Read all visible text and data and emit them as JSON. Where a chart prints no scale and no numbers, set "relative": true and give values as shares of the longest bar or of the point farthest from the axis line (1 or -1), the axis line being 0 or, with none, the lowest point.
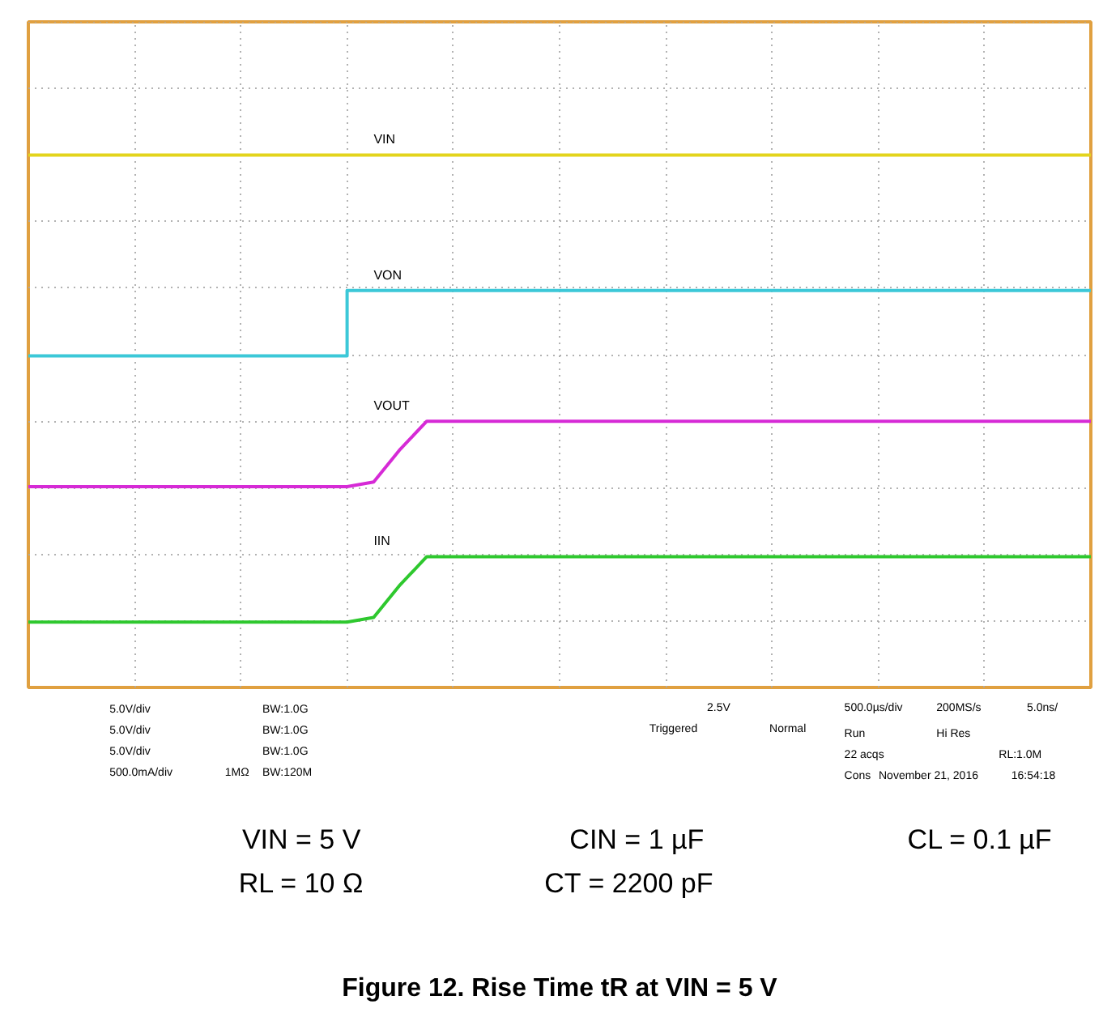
{
  "chart_data": {
    "type": "line",
    "relative": true,
    "grid": true,
    "title": "Figure 12. Rise Time tR at VIN = 5 V",
    "categories": [
      null,
      null,
      null,
      null,
      null,
      null,
      null,
      null,
      null,
      null,
      null,
      null,
      null,
      null,
      null,
      null,
      null,
      null,
      null,
      null,
      null,
      null,
      null,
      null,
      null,
      null,
      null,
      null,
      null,
      null,
      null,
      null,
      null,
      null,
      null,
      null,
      null,
      null,
      null,
      null,
      null
    ],
    "series": [
      {
        "name": "VIN",
        "color": "#e3d41c",
        "values": [
          1,
          1,
          1,
          1,
          1,
          1,
          1,
          1,
          1,
          1,
          1,
          1,
          1,
          1,
          1,
          1,
          1,
          1,
          1,
          1,
          1,
          1,
          1,
          1,
          1,
          1,
          1,
          1,
          1,
          1,
          1,
          1,
          1,
          1,
          1,
          1,
          1,
          1,
          1,
          1,
          1
        ]
      },
      {
        "name": "VON",
        "type": "step",
        "color": "#3cc8d8",
        "values": [
          0.57,
          0.57,
          0.57,
          0.57,
          0.57,
          0.57,
          0.57,
          0.57,
          0.57,
          0.57,
          0.57,
          0.57,
          0.71,
          0.71,
          0.71,
          0.71,
          0.71,
          0.71,
          0.71,
          0.71,
          0.71,
          0.71,
          0.71,
          0.71,
          0.71,
          0.71,
          0.71,
          0.71,
          0.71,
          0.71,
          0.71,
          0.71,
          0.71,
          0.71,
          0.71,
          0.71,
          0.71,
          0.71,
          0.71,
          0.71,
          0.71
        ]
      },
      {
        "name": "VOUT",
        "color": "#d62ad6",
        "values": [
          0.29,
          0.29,
          0.29,
          0.29,
          0.29,
          0.29,
          0.29,
          0.29,
          0.29,
          0.29,
          0.29,
          0.29,
          0.29,
          0.3,
          0.37,
          0.43,
          0.43,
          0.43,
          0.43,
          0.43,
          0.43,
          0.43,
          0.43,
          0.43,
          0.43,
          0.43,
          0.43,
          0.43,
          0.43,
          0.43,
          0.43,
          0.43,
          0.43,
          0.43,
          0.43,
          0.43,
          0.43,
          0.43,
          0.43,
          0.43,
          0.43
        ]
      },
      {
        "name": "IIN",
        "color": "#2ec82e",
        "values": [
          0,
          0,
          0,
          0,
          0,
          0,
          0,
          0,
          0,
          0,
          0,
          0,
          0,
          0.01,
          0.08,
          0.14,
          0.14,
          0.14,
          0.14,
          0.14,
          0.14,
          0.14,
          0.14,
          0.14,
          0.14,
          0.14,
          0.14,
          0.14,
          0.14,
          0.14,
          0.14,
          0.14,
          0.14,
          0.14,
          0.14,
          0.14,
          0.14,
          0.14,
          0.14,
          0.14,
          0.14
        ]
      }
    ],
    "annotations": [
      "5.0V/div",
      "BW:1.0G",
      "5.0V/div",
      "BW:1.0G",
      "5.0V/div",
      "BW:1.0G",
      "500.0mA/div",
      "1MΩ",
      "BW:120M",
      "2.5V",
      "Triggered",
      "Normal",
      "500.0µs/div",
      "200MS/s",
      "5.0ns/",
      "Run",
      "Hi Res",
      "22 acqs",
      "RL:1.0M",
      "Cons",
      "November 21, 2016",
      "16:54:18",
      "VIN = 5 V",
      "CIN = 1 µF",
      "CL = 0.1 µF",
      "RL = 10 Ω",
      "CT = 2200 pF"
    ]
  }
}
